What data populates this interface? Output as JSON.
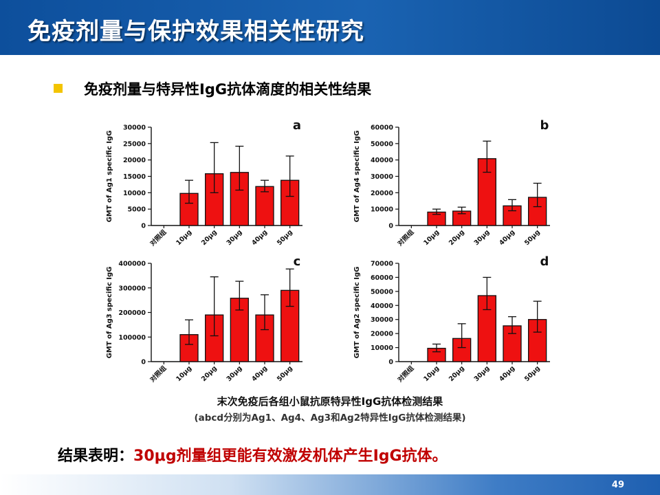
{
  "slide": {
    "title": "免疫剂量与保护效果相关性研究",
    "bullet": "免疫剂量与特异性IgG抗体滴度的相关性结果",
    "caption_main": "末次免疫后各组小鼠抗原特异性IgG抗体检测结果",
    "caption_sub": "(abcd分别为Ag1、Ag4、Ag3和Ag2特异性IgG抗体检测结果)",
    "conclusion_label": "结果表明：",
    "conclusion_text": "30μg剂量组更能有效激发机体产生IgG抗体。",
    "page_number": "49",
    "colors": {
      "bar_fill": "#ee1111",
      "accent": "#f3c400",
      "header": "#1259a8",
      "conclusion": "#c00000"
    }
  },
  "chart_data": [
    {
      "type": "bar",
      "panel": "a",
      "ylabel": "GMT of Ag1 specific IgG",
      "categories": [
        "对照组",
        "10μg",
        "20μg",
        "30μg",
        "40μg",
        "50μg"
      ],
      "values": [
        0,
        9800,
        15800,
        16200,
        11900,
        13800
      ],
      "errors_upper": [
        0,
        13800,
        25300,
        24200,
        13800,
        21200
      ],
      "errors_lower": [
        0,
        6800,
        10000,
        10800,
        10300,
        8900
      ],
      "yticks": [
        0,
        5000,
        10000,
        15000,
        20000,
        25000,
        30000
      ],
      "ytick_labels": [
        "0",
        "5000",
        "10000",
        "15000",
        "20000",
        "25000",
        "30000"
      ],
      "ylim": [
        0,
        30000
      ]
    },
    {
      "type": "bar",
      "panel": "b",
      "ylabel": "GMT of Ag4 specific IgG",
      "categories": [
        "对照组",
        "10μg",
        "20μg",
        "30μg",
        "40μg",
        "50μg"
      ],
      "values": [
        0,
        8200,
        8800,
        40800,
        12000,
        17200
      ],
      "errors_upper": [
        0,
        10000,
        11200,
        51500,
        15800,
        25800
      ],
      "errors_lower": [
        0,
        6800,
        7200,
        32500,
        9000,
        11500
      ],
      "yticks": [
        0,
        10000,
        20000,
        30000,
        40000,
        50000,
        60000
      ],
      "ytick_labels": [
        "0",
        "10000",
        "20000",
        "30000",
        "40000",
        "50000",
        "60000"
      ],
      "ylim": [
        0,
        60000
      ]
    },
    {
      "type": "bar",
      "panel": "c",
      "ylabel": "GMT of Ag3 specific IgG",
      "categories": [
        "对照组",
        "10μg",
        "20μg",
        "30μg",
        "40μg",
        "50μg"
      ],
      "values": [
        0,
        110000,
        190000,
        258000,
        190000,
        290000
      ],
      "errors_upper": [
        0,
        170000,
        345000,
        327000,
        272000,
        377000
      ],
      "errors_lower": [
        0,
        70000,
        105000,
        210000,
        130000,
        225000
      ],
      "yticks": [
        0,
        100000,
        200000,
        300000,
        400000
      ],
      "ytick_labels": [
        "0",
        "100000",
        "200000",
        "300000",
        "400000"
      ],
      "ylim": [
        0,
        400000
      ]
    },
    {
      "type": "bar",
      "panel": "d",
      "ylabel": "GMT of Ag2 specific IgG",
      "categories": [
        "对照组",
        "10μg",
        "20μg",
        "30μg",
        "40μg",
        "50μg"
      ],
      "values": [
        0,
        9500,
        16500,
        47000,
        25500,
        30000
      ],
      "errors_upper": [
        0,
        12500,
        27000,
        60000,
        32000,
        43000
      ],
      "errors_lower": [
        0,
        7000,
        10000,
        37000,
        20000,
        21000
      ],
      "yticks": [
        0,
        10000,
        20000,
        30000,
        40000,
        50000,
        60000,
        70000
      ],
      "ytick_labels": [
        "0",
        "10000",
        "20000",
        "30000",
        "40000",
        "50000",
        "60000",
        "70000"
      ],
      "ylim": [
        0,
        70000
      ]
    }
  ]
}
